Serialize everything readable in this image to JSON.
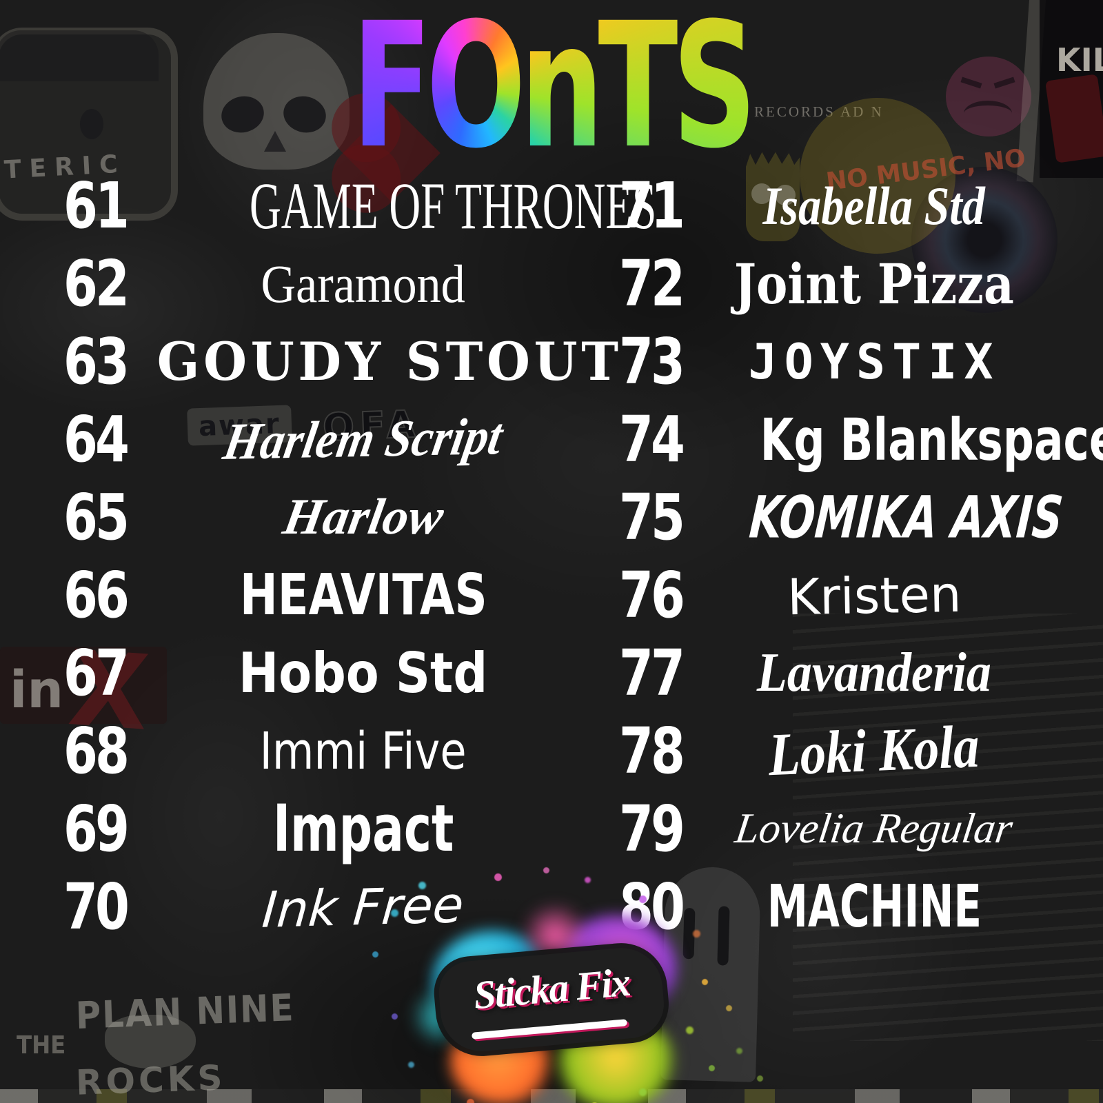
{
  "title": {
    "display": "FOnTS",
    "label": "FONTS"
  },
  "colors": {
    "background": "#1c1c1c",
    "text": "#ffffff",
    "title_rainbow": [
      "#ff3fd1",
      "#ff7a2e",
      "#ffc51e",
      "#9fe32a",
      "#2bd3a4",
      "#22b7ff",
      "#2e6bff",
      "#5d48ff",
      "#9b3bff",
      "#e03bff"
    ],
    "logo_splatter": [
      "#58e2f2",
      "#1ba8d6",
      "#e75cd8",
      "#8a3fd0",
      "#ff5fae",
      "#ff9a3d",
      "#ffd43b",
      "#8fc31f"
    ],
    "logo_accent": "#c2185b"
  },
  "font_list": {
    "left": [
      {
        "number": "61",
        "name": "GAME OF THRONES",
        "slug": "game-of-thrones"
      },
      {
        "number": "62",
        "name": "Garamond",
        "slug": "garamond"
      },
      {
        "number": "63",
        "name": "GOUDY STOUT",
        "slug": "goudy-stout"
      },
      {
        "number": "64",
        "name": "Harlem Script",
        "slug": "harlem-script"
      },
      {
        "number": "65",
        "name": "Harlow",
        "slug": "harlow"
      },
      {
        "number": "66",
        "name": "HEAVITAS",
        "slug": "heavitas"
      },
      {
        "number": "67",
        "name": "Hobo Std",
        "slug": "hobo-std"
      },
      {
        "number": "68",
        "name": "Immi Five",
        "slug": "immi-five"
      },
      {
        "number": "69",
        "name": "Impact",
        "slug": "impact"
      },
      {
        "number": "70",
        "name": "Ink Free",
        "slug": "ink-free"
      }
    ],
    "right": [
      {
        "number": "71",
        "name": "Isabella Std",
        "slug": "isabella-std"
      },
      {
        "number": "72",
        "name": "Joint Pizza",
        "slug": "joint-pizza"
      },
      {
        "number": "73",
        "name": "JOYSTIX",
        "slug": "joystix"
      },
      {
        "number": "74",
        "name": "Kg Blankspace",
        "slug": "kg-blankspace"
      },
      {
        "number": "75",
        "name": "KOMIKA AXIS",
        "slug": "komika-axis"
      },
      {
        "number": "76",
        "name": "Kristen",
        "slug": "kristen"
      },
      {
        "number": "77",
        "name": "Lavanderia",
        "slug": "lavanderia"
      },
      {
        "number": "78",
        "name": "Loki Kola",
        "slug": "loki-kola"
      },
      {
        "number": "79",
        "name": "Lovelia Regular",
        "slug": "lovelia-regular"
      },
      {
        "number": "80",
        "name": "MACHINE",
        "slug": "machine"
      }
    ]
  },
  "logo": {
    "text": "Sticka Fix"
  },
  "background_fragments": [
    {
      "slug": "teric",
      "text": "TERIC"
    },
    {
      "slug": "records",
      "text": "RECORDS AD N"
    },
    {
      "slug": "no-music",
      "text": "NO MUSIC, NO"
    },
    {
      "slug": "kil",
      "text": "KIL"
    },
    {
      "slug": "awar",
      "text": "awar"
    },
    {
      "slug": "ofa",
      "text": "OFA"
    },
    {
      "slug": "inx-in",
      "text": "in"
    },
    {
      "slug": "inx-x",
      "text": "X"
    },
    {
      "slug": "the",
      "text": "THE"
    },
    {
      "slug": "plan-nine",
      "text": "PLAN NINE"
    },
    {
      "slug": "rocks",
      "text": "ROCKS"
    }
  ]
}
